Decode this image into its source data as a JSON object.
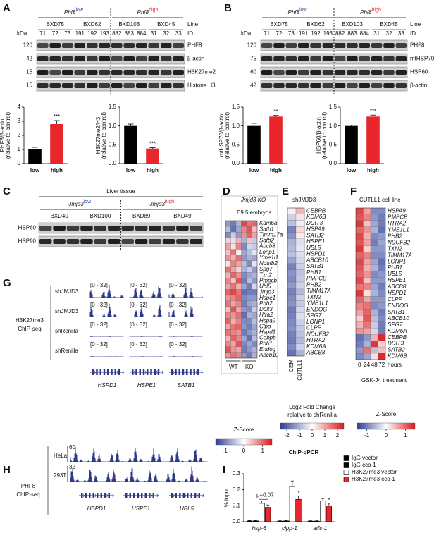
{
  "panel_a": {
    "label": "A",
    "blot": {
      "groups": [
        {
          "gene": "Phf8",
          "level": "low",
          "lines": [
            "BXD75",
            "BXD62"
          ]
        },
        {
          "gene": "Phf8",
          "level": "high",
          "lines": [
            "BXD103",
            "BXD45"
          ]
        }
      ],
      "line_label": "Line",
      "kda_label": "kDa",
      "id_label": "ID",
      "ids": [
        71,
        72,
        73,
        191,
        192,
        193,
        882,
        883,
        884,
        31,
        32,
        33
      ],
      "bands": [
        {
          "kda": 120,
          "name": "PHF8"
        },
        {
          "kda": 42,
          "name": "β-actin"
        },
        {
          "kda": 15,
          "name": "H3K27me2"
        },
        {
          "kda": 15,
          "name": "Histone H3"
        }
      ]
    },
    "charts": [
      {
        "type": "bar",
        "ylabel": [
          "PHF8/β-actin",
          "(relative to control)"
        ],
        "categories": [
          "low",
          "high"
        ],
        "category_colors": [
          "#2b4fa8",
          "#e0202a"
        ],
        "colors": [
          "#000000",
          "#e8262b"
        ],
        "values": [
          1,
          2.8
        ],
        "errors": [
          0.15,
          0.25
        ],
        "annotations": [
          null,
          "***"
        ],
        "ylim": [
          0,
          4
        ],
        "yticks": [
          0,
          1,
          2,
          3,
          4
        ]
      },
      {
        "type": "bar",
        "ylabel": [
          "H3K27me2/H3",
          "(relative to control)"
        ],
        "categories": [
          "low",
          "high"
        ],
        "category_colors": [
          "#2b4fa8",
          "#e0202a"
        ],
        "colors": [
          "#000000",
          "#e8262b"
        ],
        "values": [
          1,
          0.4
        ],
        "errors": [
          0.05,
          0.02
        ],
        "annotations": [
          null,
          "***"
        ],
        "ylim": [
          0,
          1.5
        ],
        "yticks": [
          {
            "value": 0,
            "label": "0.0"
          },
          {
            "value": 0.5,
            "label": "0.5"
          },
          {
            "value": 1,
            "label": "1.0"
          },
          {
            "value": 1.5,
            "label": "1.5"
          }
        ]
      }
    ]
  },
  "panel_b": {
    "label": "B",
    "blot": {
      "groups": [
        {
          "gene": "Phf8",
          "level": "low",
          "lines": [
            "BXD75",
            "BXD62"
          ]
        },
        {
          "gene": "Phf8",
          "level": "high",
          "lines": [
            "BXD103",
            "BXD45"
          ]
        }
      ],
      "line_label": "Line",
      "kda_label": "kDa",
      "id_label": "ID",
      "ids": [
        71,
        72,
        73,
        191,
        192,
        193,
        882,
        883,
        884,
        31,
        32,
        33
      ],
      "bands": [
        {
          "kda": 120,
          "name": "PHF8"
        },
        {
          "kda": 75,
          "name": "mtHSP70"
        },
        {
          "kda": 60,
          "name": "HSP60"
        },
        {
          "kda": 42,
          "name": "β-actin"
        }
      ]
    },
    "charts": [
      {
        "type": "bar",
        "ylabel": [
          "mtHSP70/β-actin",
          "(relative to control)"
        ],
        "categories": [
          "low",
          "high"
        ],
        "category_colors": [
          "#2b4fa8",
          "#e0202a"
        ],
        "colors": [
          "#000000",
          "#e8262b"
        ],
        "values": [
          1,
          1.25
        ],
        "errors": [
          0.07,
          0.03
        ],
        "annotations": [
          null,
          "**"
        ],
        "ylim": [
          0,
          1.5
        ],
        "yticks": [
          {
            "value": 0,
            "label": "0.0"
          },
          {
            "value": 0.5,
            "label": "0.5"
          },
          {
            "value": 1,
            "label": "1.0"
          },
          {
            "value": 1.5,
            "label": "1.5"
          }
        ]
      },
      {
        "type": "bar",
        "ylabel": [
          "HSP60/β-actin",
          "(relative to control)"
        ],
        "categories": [
          "low",
          "high"
        ],
        "category_colors": [
          "#2b4fa8",
          "#e0202a"
        ],
        "colors": [
          "#000000",
          "#e8262b"
        ],
        "values": [
          1,
          1.25
        ],
        "errors": [
          0.02,
          0.04
        ],
        "annotations": [
          null,
          "***"
        ],
        "ylim": [
          0,
          1.5
        ],
        "yticks": [
          {
            "value": 0,
            "label": "0.0"
          },
          {
            "value": 0.5,
            "label": "0.5"
          },
          {
            "value": 1,
            "label": "1.0"
          },
          {
            "value": 1.5,
            "label": "1.5"
          }
        ]
      }
    ]
  },
  "panel_c": {
    "label": "C",
    "blot": {
      "title": "Liver tissue",
      "groups": [
        {
          "gene": "Jmjd3",
          "level": "low",
          "lines": [
            "BXD40",
            "BXD100"
          ]
        },
        {
          "gene": "Jmjd3",
          "level": "high",
          "lines": [
            "BXD89",
            "BXD49"
          ]
        }
      ],
      "bands": [
        {
          "name": "HSP60"
        },
        {
          "name": "HSP90"
        }
      ]
    }
  },
  "panel_d": {
    "label": "D",
    "title": "Jmjd3 KO",
    "subtitle": "E9.5 embryos",
    "column_groups": [
      "WT",
      "KO"
    ],
    "genes": [
      "Kdm6a",
      "Satb1",
      "Timm17a",
      "Satb2",
      "Abcb8",
      "Lonp1",
      "Yme1l1",
      "Ndufb2",
      "Spg7",
      "Txn2",
      "Pmpcb",
      "Ubl5",
      "Jmjd3",
      "Hspe1",
      "Phb2",
      "Ddit3",
      "Htra2",
      "Hspa9",
      "Clpp",
      "Hspd1",
      "Cebpb",
      "Phb1",
      "Endog",
      "Abcb10"
    ],
    "values": [
      [
        -0.8,
        -1.0,
        -0.6,
        1.2,
        0.9,
        1.0
      ],
      [
        -0.5,
        -1.1,
        -0.7,
        0.8,
        1.1,
        0.4
      ],
      [
        -0.9,
        -0.4,
        -0.8,
        0.7,
        1.0,
        0.6
      ],
      [
        0.3,
        -0.2,
        0.5,
        -0.6,
        0.4,
        -0.4
      ],
      [
        0.6,
        0.2,
        0.8,
        -0.9,
        -0.3,
        -0.4
      ],
      [
        0.4,
        0.9,
        0.1,
        -0.7,
        -0.5,
        -0.2
      ],
      [
        0.7,
        0.5,
        0.9,
        -0.8,
        -0.6,
        -0.7
      ],
      [
        0.2,
        0.8,
        0.6,
        -0.5,
        -0.9,
        -0.2
      ],
      [
        0.9,
        0.6,
        0.3,
        -0.6,
        -0.4,
        -0.8
      ],
      [
        0.5,
        1.0,
        0.7,
        -0.9,
        -0.7,
        -0.6
      ],
      [
        0.8,
        0.4,
        1.1,
        -1.0,
        -0.5,
        -0.8
      ],
      [
        0.6,
        0.9,
        0.5,
        -0.7,
        -1.0,
        -0.3
      ],
      [
        1.0,
        1.2,
        0.9,
        -1.1,
        -1.0,
        -1.0
      ],
      [
        0.7,
        0.8,
        1.0,
        -0.9,
        -0.8,
        -0.8
      ],
      [
        0.9,
        0.6,
        0.8,
        -1.0,
        -0.7,
        -0.6
      ],
      [
        0.4,
        1.1,
        0.6,
        -0.8,
        -0.9,
        -0.4
      ],
      [
        0.8,
        0.7,
        0.9,
        -1.1,
        -0.6,
        -0.7
      ],
      [
        1.0,
        0.5,
        0.8,
        -0.9,
        -0.9,
        -0.5
      ],
      [
        0.6,
        0.9,
        1.0,
        -0.8,
        -1.0,
        -0.7
      ],
      [
        0.9,
        0.8,
        0.7,
        -1.0,
        -0.8,
        -0.6
      ],
      [
        0.5,
        1.0,
        0.8,
        -0.7,
        -1.1,
        -0.5
      ],
      [
        0.8,
        0.6,
        1.1,
        -0.9,
        -0.7,
        -0.9
      ],
      [
        1.1,
        0.7,
        0.6,
        -1.0,
        -0.8,
        -0.6
      ],
      [
        0.7,
        0.9,
        0.8,
        -0.8,
        -1.0,
        -0.6
      ]
    ],
    "colorbar": {
      "title": [
        "Z-Score"
      ],
      "lim": [
        -1.5,
        1.5
      ],
      "ticks": [
        -1,
        0,
        1
      ]
    }
  },
  "panel_e": {
    "label": "E",
    "title": "shJMJD3",
    "columns": [
      "CEM",
      "CUTLL1"
    ],
    "genes": [
      "CEBPB",
      "KDM6B",
      "DDIT3",
      "HSPA9",
      "SATB2",
      "HSPE1",
      "UBL5",
      "HSPD1",
      "ABCB10",
      "SATB1",
      "PHB1",
      "PMPCB",
      "PHB2",
      "TIMM17A",
      "TXN2",
      "YME1L1",
      "ENDOG",
      "SPG7",
      "LONP1",
      "CLPP",
      "NDUFB2",
      "HTRA2",
      "KDM6A",
      "ABCB8"
    ],
    "values": [
      [
        0.2,
        0.8
      ],
      [
        -0.6,
        0.3
      ],
      [
        -0.8,
        -0.2
      ],
      [
        -1.6,
        0.4
      ],
      [
        -1.4,
        0.2
      ],
      [
        -1.0,
        -0.4
      ],
      [
        -0.9,
        -0.3
      ],
      [
        -0.8,
        -0.4
      ],
      [
        -1.2,
        -0.5
      ],
      [
        -1.6,
        -0.6
      ],
      [
        -1.4,
        -0.8
      ],
      [
        -1.5,
        -0.7
      ],
      [
        -1.3,
        -0.6
      ],
      [
        -1.6,
        -0.9
      ],
      [
        -1.5,
        -0.6
      ],
      [
        -1.4,
        -0.7
      ],
      [
        -1.7,
        -0.5
      ],
      [
        -1.6,
        -0.4
      ],
      [
        -1.5,
        -0.6
      ],
      [
        -1.4,
        -0.7
      ],
      [
        -1.6,
        -0.8
      ],
      [
        -1.7,
        -0.9
      ],
      [
        -1.5,
        -0.6
      ],
      [
        -1.8,
        -1.0
      ]
    ],
    "colorbar": {
      "title": [
        "Log2 Fold Change",
        "relative to shRenilla"
      ],
      "lim": [
        -2.5,
        2.5
      ],
      "ticks": [
        -2,
        -1,
        0,
        1,
        2
      ]
    }
  },
  "panel_f": {
    "label": "F",
    "title": "CUTLL1 cell line",
    "columns": [
      0,
      24,
      48,
      72
    ],
    "column_unit": "hours",
    "treatment": "GSK-J4 treatment",
    "genes": [
      "HSPA9",
      "PMPCB",
      "HTRA2",
      "YME1L1",
      "PHB2",
      "NDUFB2",
      "TXN2",
      "TIMM17A",
      "LONP1",
      "PHB1",
      "UBL5",
      "HSPE1",
      "ABCB8",
      "HSPD1",
      "CLPP",
      "ENDOG",
      "SATB1",
      "ABCB10",
      "SPG7",
      "KDM6A",
      "CEBPB",
      "DDIT3",
      "SATB2",
      "KDM6B"
    ],
    "values": [
      [
        1.2,
        0.6,
        -0.9,
        -0.9
      ],
      [
        1.1,
        0.8,
        -0.8,
        -1.0
      ],
      [
        1.3,
        0.4,
        -0.7,
        -1.0
      ],
      [
        1.0,
        0.7,
        -0.6,
        -1.1
      ],
      [
        1.2,
        0.5,
        -0.9,
        -0.8
      ],
      [
        1.1,
        0.6,
        -1.0,
        -0.7
      ],
      [
        1.3,
        0.3,
        -0.8,
        -0.8
      ],
      [
        1.0,
        0.8,
        -0.9,
        -0.9
      ],
      [
        1.2,
        0.6,
        -0.7,
        -1.1
      ],
      [
        1.1,
        0.5,
        -0.6,
        -1.0
      ],
      [
        1.0,
        0.7,
        -0.9,
        -0.8
      ],
      [
        1.2,
        0.4,
        -0.8,
        -0.8
      ],
      [
        0.9,
        0.8,
        -0.7,
        -1.0
      ],
      [
        1.3,
        0.2,
        -0.6,
        -0.9
      ],
      [
        1.0,
        0.6,
        -0.8,
        -0.8
      ],
      [
        0.8,
        0.9,
        -0.9,
        -0.8
      ],
      [
        0.6,
        1.0,
        -0.6,
        -1.0
      ],
      [
        0.3,
        1.1,
        -0.5,
        -0.9
      ],
      [
        0.5,
        0.9,
        -0.4,
        -1.0
      ],
      [
        0.7,
        0.6,
        -0.3,
        -1.0
      ],
      [
        -1.1,
        -0.8,
        0.5,
        1.4
      ],
      [
        -1.0,
        -0.6,
        1.3,
        0.3
      ],
      [
        -0.8,
        0.9,
        -0.5,
        0.4
      ],
      [
        -0.9,
        -0.7,
        0.2,
        1.4
      ]
    ],
    "colorbar": {
      "title": [
        "Z-Score"
      ],
      "lim": [
        -1.5,
        1.5
      ],
      "ticks": [
        -1,
        0,
        1
      ]
    }
  },
  "panel_g": {
    "label": "G",
    "assay": [
      "H3K27me3",
      "ChIP-seq"
    ],
    "tracks": [
      "shJMJD3",
      "shJMJD3",
      "shRenilla",
      "shRenilla"
    ],
    "range": "[0 - 32]",
    "genes": [
      "HSPD1",
      "HSPE1",
      "SATB1"
    ]
  },
  "panel_h": {
    "label": "H",
    "assay": [
      "PHF8",
      "ChIP-seq"
    ],
    "tracks": [
      "HeLa",
      "293T"
    ],
    "track_max": [
      60,
      32
    ],
    "genes": [
      "HSPD1",
      "HSPE1",
      "UBL5"
    ]
  },
  "panel_i": {
    "label": "I",
    "chart": {
      "type": "bar",
      "title": "ChIP-qPCR",
      "ylabel": [
        "% input"
      ],
      "categories": [
        "hsp-6",
        "clpp-1",
        "atfs-1"
      ],
      "series": [
        {
          "name": "IgG vector",
          "color": "#ffffff",
          "hatch": true,
          "values": [
            0.005,
            0.004,
            0.004
          ],
          "errors": [
            0.002,
            0.002,
            0.002
          ]
        },
        {
          "name": "IgG cco-1",
          "color": "#8b1a1a",
          "hatch": true,
          "values": [
            0.005,
            0.005,
            0.004
          ],
          "errors": [
            0.002,
            0.002,
            0.002
          ]
        },
        {
          "name": "H3K27me3 vector",
          "color": "#ffffff",
          "values": [
            0.115,
            0.22,
            0.13
          ],
          "errors": [
            0.015,
            0.035,
            0.015
          ]
        },
        {
          "name": "H3K27me3 cco-1",
          "color": "#e8262b",
          "values": [
            0.09,
            0.14,
            0.1
          ],
          "errors": [
            0.015,
            0.02,
            0.015
          ],
          "annotations": [
            "p=0.07",
            "*",
            "*"
          ]
        }
      ],
      "ylim": [
        0,
        0.3
      ],
      "yticks": [
        {
          "value": 0,
          "label": "0.0"
        },
        0.1,
        0.2,
        0.3
      ]
    }
  }
}
